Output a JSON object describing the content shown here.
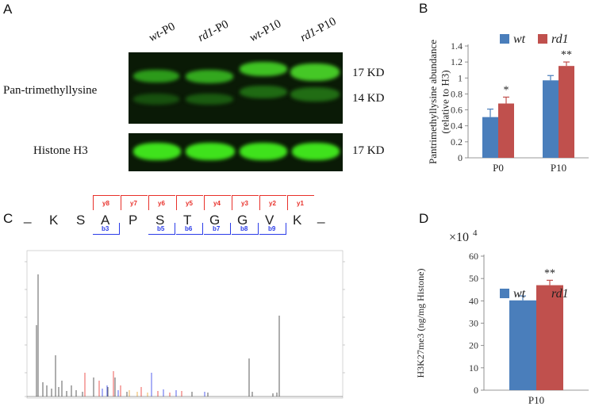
{
  "panels": {
    "a": "A",
    "b": "B",
    "c": "C",
    "d": "D"
  },
  "blot": {
    "lanes": [
      {
        "italic": "wt",
        "rest": "-P0"
      },
      {
        "italic": "rd1",
        "rest": "-P0"
      },
      {
        "italic": "wt",
        "rest": "-P10"
      },
      {
        "italic": "rd1",
        "rest": "-P10"
      }
    ],
    "row1_label": "Pan-trimethyllysine",
    "row2_label": "Histone H3",
    "kd_17_top": "17 KD",
    "kd_14": "14 KD",
    "kd_17_bottom": "17 KD",
    "colors": {
      "background": "#0a1a06",
      "band": "#39e21c"
    }
  },
  "peptide": {
    "dash_left": "_",
    "dash_right": "_",
    "residues": [
      "K",
      "S",
      "A",
      "P",
      "S",
      "T",
      "G",
      "G",
      "V",
      "K"
    ],
    "y_ions": [
      "y8",
      "y7",
      "y6",
      "y5",
      "y4",
      "y3",
      "y2",
      "y1"
    ],
    "b_ions": [
      "b3",
      "b5",
      "b6",
      "b7",
      "b8",
      "b9"
    ],
    "colors": {
      "y": "#e8302a",
      "b": "#2a3be8"
    }
  },
  "chart_data": [
    {
      "type": "bar",
      "panel": "B",
      "ylabel": "Pantrimethyllysine abundance (relative to H3)",
      "categories": [
        "P0",
        "P10"
      ],
      "series": [
        {
          "name": "wt",
          "values": [
            0.51,
            0.97
          ],
          "errors": [
            0.1,
            0.06
          ],
          "color": "#4a7ebb"
        },
        {
          "name": "rd1",
          "values": [
            0.68,
            1.15
          ],
          "errors": [
            0.08,
            0.05
          ],
          "color": "#c0504d"
        }
      ],
      "ylim": [
        0,
        1.4
      ],
      "yticks": [
        "0",
        "0.2",
        "0.4",
        "0.6",
        "0.8",
        "1",
        "1.2",
        "1.4"
      ],
      "significance": [
        "*",
        "**"
      ],
      "legend": "top"
    },
    {
      "type": "bar",
      "panel": "D",
      "ylabel": "H3K27me3 (ng/mg Histone)",
      "multiplier": "×10",
      "multiplier_exp": "4",
      "categories": [
        "P10"
      ],
      "series": [
        {
          "name": "wt",
          "values": [
            40.2
          ],
          "errors": [
            2.0
          ],
          "color": "#4a7ebb"
        },
        {
          "name": "rd1",
          "values": [
            47.0
          ],
          "errors": [
            2.2
          ],
          "color": "#c0504d"
        }
      ],
      "ylim": [
        0,
        60
      ],
      "yticks": [
        "0",
        "10",
        "20",
        "30",
        "40",
        "50",
        "60"
      ],
      "significance": [
        "**"
      ],
      "legend": "top"
    }
  ]
}
